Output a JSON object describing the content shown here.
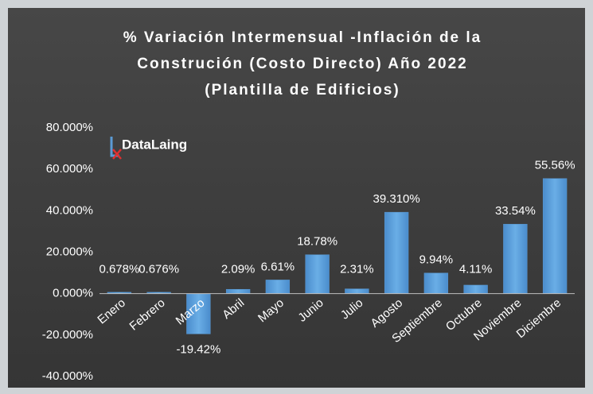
{
  "chart_data": {
    "type": "bar",
    "title": [
      "% Variación Intermensual -Inflación de la",
      "Construción (Costo Directo) Año 2022",
      "(Plantilla de Edificios)"
    ],
    "logo": "DataLaing",
    "categories": [
      "Enero",
      "Febrero",
      "Marzo",
      "Abril",
      "Mayo",
      "Junio",
      "Julio",
      "Agosto",
      "Septiembre",
      "Octubre",
      "Noviembre",
      "Diciembre"
    ],
    "values": [
      0.678,
      0.676,
      -19.42,
      2.09,
      6.61,
      18.78,
      2.31,
      39.31,
      9.94,
      4.11,
      33.54,
      55.56
    ],
    "value_labels": [
      "0.678%",
      "0.676%",
      "-19.42%",
      "2.09%",
      "6.61%",
      "18.78%",
      "2.31%",
      "39.310%",
      "9.94%",
      "4.11%",
      "33.54%",
      "55.56%"
    ],
    "color": "#5b9bd5",
    "ylim": [
      -40,
      80
    ],
    "yticks": [
      {
        "value": -40,
        "label": "-40.000%"
      },
      {
        "value": -20,
        "label": "-20.000%"
      },
      {
        "value": 0,
        "label": "0.000%"
      },
      {
        "value": 20,
        "label": "20.000%"
      },
      {
        "value": 40,
        "label": "40.000%"
      },
      {
        "value": 60,
        "label": "60.000%"
      },
      {
        "value": 80,
        "label": "80.000%"
      }
    ],
    "grid": false
  }
}
